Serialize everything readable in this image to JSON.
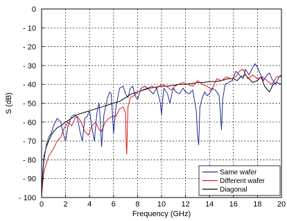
{
  "chart_data": {
    "type": "line",
    "title": "",
    "xlabel": "Frequency (GHz)",
    "ylabel": "S (dB)",
    "xlim": [
      0,
      20
    ],
    "ylim": [
      -100,
      0
    ],
    "xticks": [
      0,
      2,
      4,
      6,
      8,
      10,
      12,
      14,
      16,
      18,
      20
    ],
    "yticks": [
      0,
      -10,
      -20,
      -30,
      -40,
      -50,
      -60,
      -70,
      -80,
      -90,
      -100
    ],
    "grid": true,
    "legend_position": "bottom-right",
    "series": [
      {
        "name": "Same wafer",
        "color": "#1f2a8c",
        "x": [
          0,
          0.1,
          0.2,
          0.4,
          0.6,
          0.8,
          1.0,
          1.3,
          1.6,
          1.8,
          2.0,
          2.2,
          2.5,
          2.8,
          3.0,
          3.2,
          3.4,
          3.6,
          3.8,
          4.0,
          4.2,
          4.4,
          4.6,
          4.7,
          4.8,
          4.9,
          5.0,
          5.2,
          5.5,
          5.7,
          5.8,
          5.9,
          6.0,
          6.2,
          6.5,
          6.8,
          7.0,
          7.2,
          7.4,
          7.6,
          7.8,
          8.0,
          8.3,
          8.6,
          9.0,
          9.3,
          9.6,
          9.9,
          10.0,
          10.1,
          10.2,
          10.5,
          10.7,
          10.9,
          11.0,
          11.2,
          11.5,
          11.8,
          12.0,
          12.3,
          12.6,
          12.9,
          13.0,
          13.1,
          13.2,
          13.4,
          13.6,
          13.8,
          14.0,
          14.2,
          14.5,
          14.8,
          14.9,
          15.0,
          15.1,
          15.3,
          15.6,
          15.9,
          16.2,
          16.5,
          16.8,
          17.0,
          17.3,
          17.6,
          17.8,
          18.0,
          18.2,
          18.5,
          18.8,
          19.0,
          19.2,
          19.5,
          19.8,
          20.0
        ],
        "y": [
          -98,
          -88,
          -80,
          -72,
          -68,
          -66,
          -62,
          -58,
          -60,
          -66,
          -70,
          -62,
          -57,
          -56,
          -58,
          -65,
          -70,
          -58,
          -57,
          -54,
          -63,
          -70,
          -56,
          -52,
          -50,
          -60,
          -73,
          -56,
          -47,
          -44,
          -45,
          -55,
          -66,
          -52,
          -42,
          -41,
          -45,
          -47,
          -42,
          -41,
          -46,
          -48,
          -42,
          -41,
          -43,
          -45,
          -42,
          -50,
          -56,
          -48,
          -42,
          -45,
          -50,
          -44,
          -42,
          -44,
          -45,
          -42,
          -44,
          -45,
          -43,
          -54,
          -67,
          -72,
          -52,
          -47,
          -44,
          -46,
          -45,
          -42,
          -43,
          -46,
          -54,
          -64,
          -48,
          -40,
          -39,
          -38,
          -33,
          -35,
          -37,
          -32,
          -35,
          -31,
          -29,
          -31,
          -34,
          -38,
          -35,
          -34,
          -37,
          -40,
          -36,
          -35
        ]
      },
      {
        "name": "Different wafer",
        "color": "#e0141a",
        "x": [
          0,
          0.1,
          0.2,
          0.4,
          0.6,
          0.8,
          1.0,
          1.3,
          1.6,
          1.9,
          2.2,
          2.5,
          2.8,
          3.0,
          3.3,
          3.6,
          3.9,
          4.2,
          4.5,
          4.8,
          5.0,
          5.3,
          5.6,
          5.9,
          6.2,
          6.5,
          6.8,
          7.0,
          7.05,
          7.1,
          7.2,
          7.4,
          7.7,
          8.0,
          8.4,
          8.8,
          9.2,
          9.6,
          10.0,
          10.4,
          10.8,
          11.1,
          11.4,
          11.8,
          12.2,
          12.6,
          13.0,
          13.4,
          13.8,
          14.2,
          14.6,
          15.0,
          15.4,
          15.8,
          16.2,
          16.5,
          16.8,
          17.2,
          17.6,
          18.0,
          18.4,
          18.8,
          19.2,
          19.6,
          20.0
        ],
        "y": [
          -99,
          -92,
          -86,
          -82,
          -78,
          -76,
          -74,
          -70,
          -68,
          -63,
          -60,
          -62,
          -58,
          -57,
          -60,
          -65,
          -67,
          -62,
          -60,
          -64,
          -65,
          -60,
          -58,
          -57,
          -57,
          -53,
          -52,
          -55,
          -70,
          -77,
          -52,
          -47,
          -46,
          -44,
          -43,
          -42,
          -41,
          -42,
          -40,
          -41,
          -43,
          -41,
          -40,
          -39,
          -40,
          -41,
          -38,
          -40,
          -41,
          -43,
          -37,
          -38,
          -36,
          -37,
          -36,
          -33,
          -32,
          -37,
          -35,
          -37,
          -36,
          -38,
          -40,
          -36,
          -36
        ]
      },
      {
        "name": "Diagonal",
        "color": "#000000",
        "x": [
          0,
          0.1,
          0.2,
          0.4,
          0.6,
          0.8,
          1.0,
          1.3,
          1.6,
          2.0,
          2.5,
          3.0,
          3.5,
          4.0,
          4.5,
          5.0,
          5.5,
          6.0,
          6.5,
          7.0,
          7.5,
          8.0,
          8.5,
          9.0,
          9.5,
          10.0,
          10.5,
          11.0,
          11.5,
          12.0,
          12.5,
          13.0,
          13.5,
          14.0,
          14.5,
          15.0,
          15.5,
          16.0,
          16.3,
          16.6,
          17.0,
          17.3,
          17.6,
          18.0,
          18.3,
          18.6,
          19.0,
          19.3,
          19.6,
          20.0
        ],
        "y": [
          -97,
          -86,
          -78,
          -73,
          -70,
          -67,
          -65,
          -63,
          -62,
          -60,
          -58,
          -56,
          -55,
          -54,
          -53,
          -52,
          -51,
          -50,
          -49,
          -47,
          -45,
          -44,
          -43,
          -42,
          -41.5,
          -41,
          -41,
          -40.5,
          -40,
          -40,
          -39.5,
          -39,
          -39,
          -38.5,
          -38.5,
          -38,
          -37,
          -37,
          -38,
          -36,
          -35,
          -37,
          -39,
          -38,
          -36,
          -41,
          -44,
          -40,
          -39,
          -40
        ]
      }
    ]
  }
}
